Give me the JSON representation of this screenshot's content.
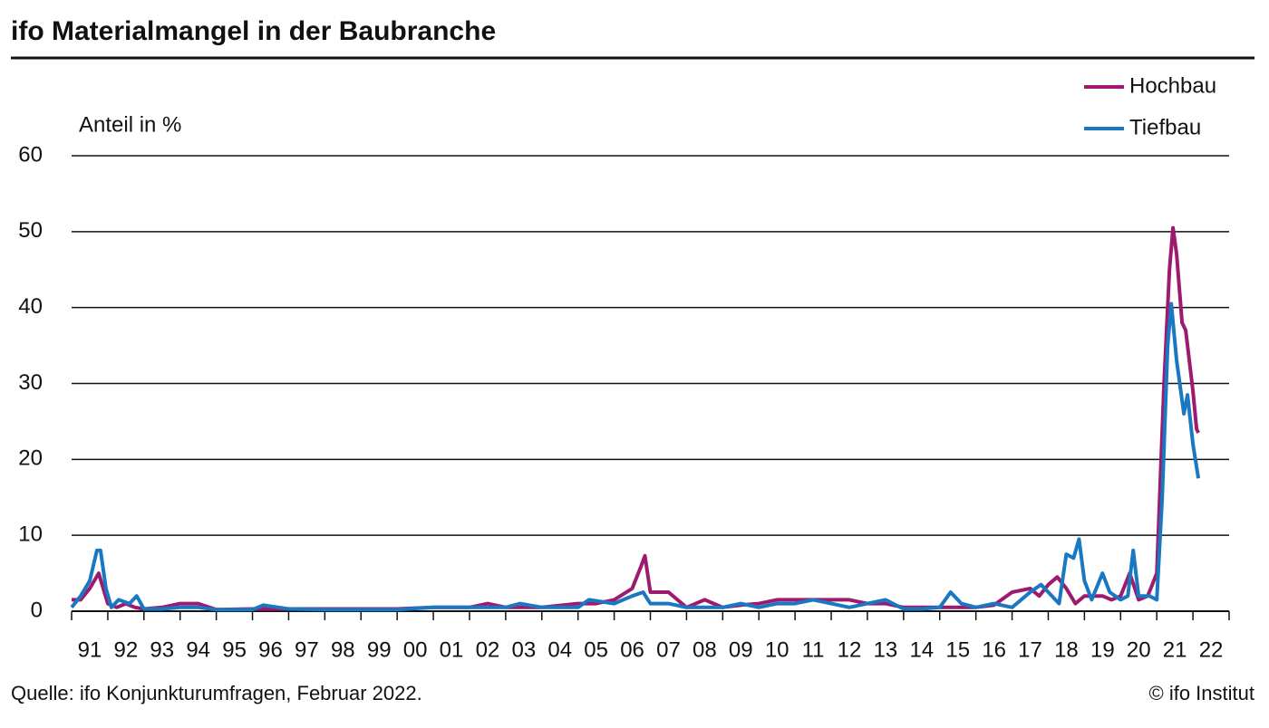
{
  "chart_data": {
    "type": "line",
    "title": "ifo Materialmangel in der Baubranche",
    "y_label": "Anteil in %",
    "source": "Quelle: ifo Konjunkturumfragen, Februar 2022.",
    "credit": "© ifo Institut",
    "xlim": [
      1991,
      2023
    ],
    "xticks": [
      {
        "value": 1991.5,
        "label": "91"
      },
      {
        "value": 1992.5,
        "label": "92"
      },
      {
        "value": 1993.5,
        "label": "93"
      },
      {
        "value": 1994.5,
        "label": "94"
      },
      {
        "value": 1995.5,
        "label": "95"
      },
      {
        "value": 1996.5,
        "label": "96"
      },
      {
        "value": 1997.5,
        "label": "97"
      },
      {
        "value": 1998.5,
        "label": "98"
      },
      {
        "value": 1999.5,
        "label": "99"
      },
      {
        "value": 2000.5,
        "label": "00"
      },
      {
        "value": 2001.5,
        "label": "01"
      },
      {
        "value": 2002.5,
        "label": "02"
      },
      {
        "value": 2003.5,
        "label": "03"
      },
      {
        "value": 2004.5,
        "label": "04"
      },
      {
        "value": 2005.5,
        "label": "05"
      },
      {
        "value": 2006.5,
        "label": "06"
      },
      {
        "value": 2007.5,
        "label": "07"
      },
      {
        "value": 2008.5,
        "label": "08"
      },
      {
        "value": 2009.5,
        "label": "09"
      },
      {
        "value": 2010.5,
        "label": "10"
      },
      {
        "value": 2011.5,
        "label": "11"
      },
      {
        "value": 2012.5,
        "label": "12"
      },
      {
        "value": 2013.5,
        "label": "13"
      },
      {
        "value": 2014.5,
        "label": "14"
      },
      {
        "value": 2015.5,
        "label": "15"
      },
      {
        "value": 2016.5,
        "label": "16"
      },
      {
        "value": 2017.5,
        "label": "17"
      },
      {
        "value": 2018.5,
        "label": "18"
      },
      {
        "value": 2019.5,
        "label": "19"
      },
      {
        "value": 2020.5,
        "label": "20"
      },
      {
        "value": 2021.5,
        "label": "21"
      },
      {
        "value": 2022.5,
        "label": "22"
      }
    ],
    "ylim": [
      0,
      60
    ],
    "yticks": [
      0,
      10,
      20,
      30,
      40,
      50,
      60
    ],
    "grid": true,
    "legend": "top-right",
    "series": [
      {
        "name": "Hochbau",
        "color": "#9e1a6e",
        "x": [
          1991.0,
          1991.25,
          1991.5,
          1991.75,
          1992.0,
          1992.25,
          1992.5,
          1992.75,
          1993.0,
          1993.5,
          1994.0,
          1994.5,
          1995,
          1996,
          1997,
          1998,
          1999,
          2000,
          2001,
          2002,
          2002.5,
          2003,
          2004,
          2005,
          2005.5,
          2006,
          2006.5,
          2006.75,
          2006.85,
          2007,
          2007.5,
          2007.75,
          2008,
          2008.5,
          2009,
          2009.5,
          2010,
          2010.5,
          2011,
          2011.5,
          2012,
          2012.5,
          2013,
          2013.5,
          2014,
          2014.5,
          2015,
          2015.5,
          2016,
          2016.5,
          2017,
          2017.5,
          2017.75,
          2018,
          2018.25,
          2018.5,
          2018.75,
          2019,
          2019.5,
          2019.75,
          2020,
          2020.25,
          2020.5,
          2020.75,
          2021,
          2021.2,
          2021.35,
          2021.45,
          2021.55,
          2021.7,
          2021.8,
          2021.9,
          2022.0,
          2022.1,
          2022.15
        ],
        "values": [
          1.5,
          1.5,
          3,
          5,
          1,
          0.5,
          1,
          0.5,
          0.3,
          0.5,
          1,
          1,
          0.2,
          0.3,
          0.3,
          0.3,
          0.3,
          0.3,
          0.5,
          0.5,
          1,
          0.5,
          0.5,
          1,
          1,
          1.5,
          3,
          6,
          7.3,
          2.5,
          2.5,
          1.5,
          0.5,
          1.5,
          0.5,
          0.8,
          1,
          1.5,
          1.5,
          1.5,
          1.5,
          1.5,
          1,
          1,
          0.5,
          0.5,
          0.5,
          0.5,
          0.5,
          0.8,
          2.5,
          3,
          2,
          3.5,
          4.5,
          3,
          1,
          2,
          2,
          1.5,
          2,
          5,
          1.5,
          2,
          5,
          30,
          45,
          50.5,
          47,
          38,
          37,
          33,
          29,
          24,
          23.5
        ]
      },
      {
        "name": "Tiefbau",
        "color": "#1a78c2",
        "x": [
          1991.0,
          1991.25,
          1991.5,
          1991.7,
          1991.8,
          1991.95,
          1992.1,
          1992.3,
          1992.6,
          1992.8,
          1993,
          1993.5,
          1994,
          1994.5,
          1995,
          1996,
          1996.3,
          1997,
          1998,
          1999,
          2000,
          2001,
          2002,
          2003,
          2003.4,
          2004,
          2005,
          2005.3,
          2006,
          2006.5,
          2006.8,
          2007,
          2007.5,
          2008,
          2008.5,
          2009,
          2009.5,
          2010,
          2010.5,
          2011,
          2011.5,
          2012,
          2012.5,
          2013,
          2013.5,
          2014,
          2014.5,
          2015,
          2015.3,
          2015.6,
          2016,
          2016.5,
          2017,
          2017.5,
          2017.8,
          2018,
          2018.3,
          2018.5,
          2018.7,
          2018.85,
          2019,
          2019.2,
          2019.5,
          2019.7,
          2020,
          2020.2,
          2020.35,
          2020.5,
          2020.8,
          2021,
          2021.15,
          2021.3,
          2021.4,
          2021.55,
          2021.75,
          2021.85,
          2022.0,
          2022.15
        ],
        "values": [
          0.5,
          2,
          4,
          8,
          8,
          3,
          0.5,
          1.5,
          1,
          2,
          0.3,
          0.3,
          0.5,
          0.5,
          0.2,
          0.2,
          0.8,
          0.3,
          0.2,
          0.2,
          0.2,
          0.5,
          0.5,
          0.5,
          1,
          0.5,
          0.5,
          1.5,
          1,
          2,
          2.5,
          1,
          1,
          0.5,
          0.5,
          0.5,
          1,
          0.5,
          1,
          1,
          1.5,
          1,
          0.5,
          1,
          1.5,
          0.3,
          0.3,
          0.5,
          2.5,
          1,
          0.5,
          1,
          0.5,
          2.5,
          3.5,
          2.5,
          1,
          7.5,
          7,
          9.5,
          4,
          1.5,
          5,
          2.5,
          1.5,
          2,
          8,
          2,
          2,
          1.5,
          15,
          35,
          40.5,
          33,
          26,
          28.5,
          22,
          17.5
        ]
      }
    ]
  }
}
